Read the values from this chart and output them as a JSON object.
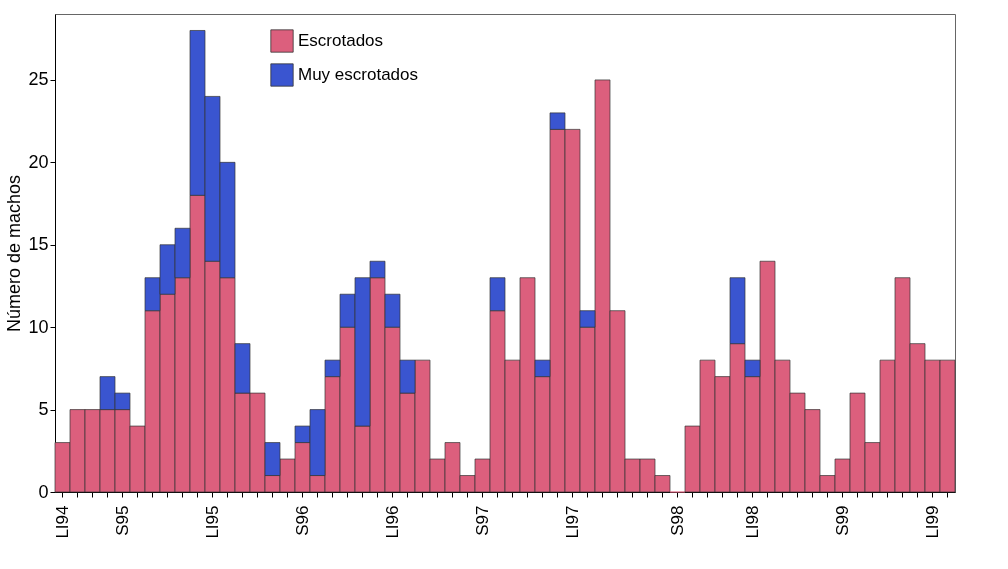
{
  "chart_data": {
    "type": "bar",
    "stacked": true,
    "ylabel": "Número de machos",
    "categories": [
      "LI94",
      null,
      null,
      null,
      "S95",
      null,
      null,
      null,
      null,
      null,
      "LI95",
      null,
      null,
      null,
      null,
      null,
      "S96",
      null,
      null,
      null,
      null,
      null,
      "LI96",
      null,
      null,
      null,
      null,
      null,
      "S97",
      null,
      null,
      null,
      null,
      null,
      "LI97",
      null,
      null,
      null,
      null,
      null,
      null,
      "S98",
      null,
      null,
      null,
      null,
      "LI98",
      null,
      null,
      null,
      null,
      null,
      "S99",
      null,
      null,
      null,
      null,
      null,
      "LI99",
      null
    ],
    "series": [
      {
        "name": "Escrotados",
        "color": "#dc5f7d",
        "values": [
          3,
          5,
          5,
          5,
          5,
          4,
          11,
          12,
          13,
          18,
          14,
          13,
          6,
          6,
          1,
          2,
          3,
          1,
          7,
          10,
          4,
          13,
          10,
          6,
          8,
          2,
          3,
          1,
          2,
          11,
          8,
          13,
          7,
          22,
          22,
          10,
          25,
          11,
          2,
          2,
          1,
          0,
          4,
          8,
          7,
          9,
          7,
          14,
          8,
          6,
          5,
          1,
          2,
          6,
          3,
          8,
          13,
          9,
          8,
          8
        ]
      },
      {
        "name": "Muy escrotados",
        "color": "#3a55d0",
        "values": [
          null,
          null,
          null,
          2,
          1,
          null,
          2,
          3,
          3,
          10,
          10,
          7,
          3,
          null,
          2,
          null,
          1,
          4,
          1,
          2,
          9,
          1,
          2,
          2,
          null,
          null,
          null,
          null,
          null,
          2,
          null,
          null,
          1,
          1,
          null,
          1,
          null,
          null,
          null,
          null,
          null,
          null,
          null,
          null,
          null,
          4,
          1,
          null,
          null,
          null,
          null,
          null,
          null,
          null,
          null,
          null,
          null,
          null,
          null,
          null
        ]
      }
    ],
    "ylim": [
      0,
      29
    ],
    "yticks": [
      0,
      5,
      10,
      15,
      20,
      25
    ],
    "grid": false,
    "legend": "top left"
  }
}
